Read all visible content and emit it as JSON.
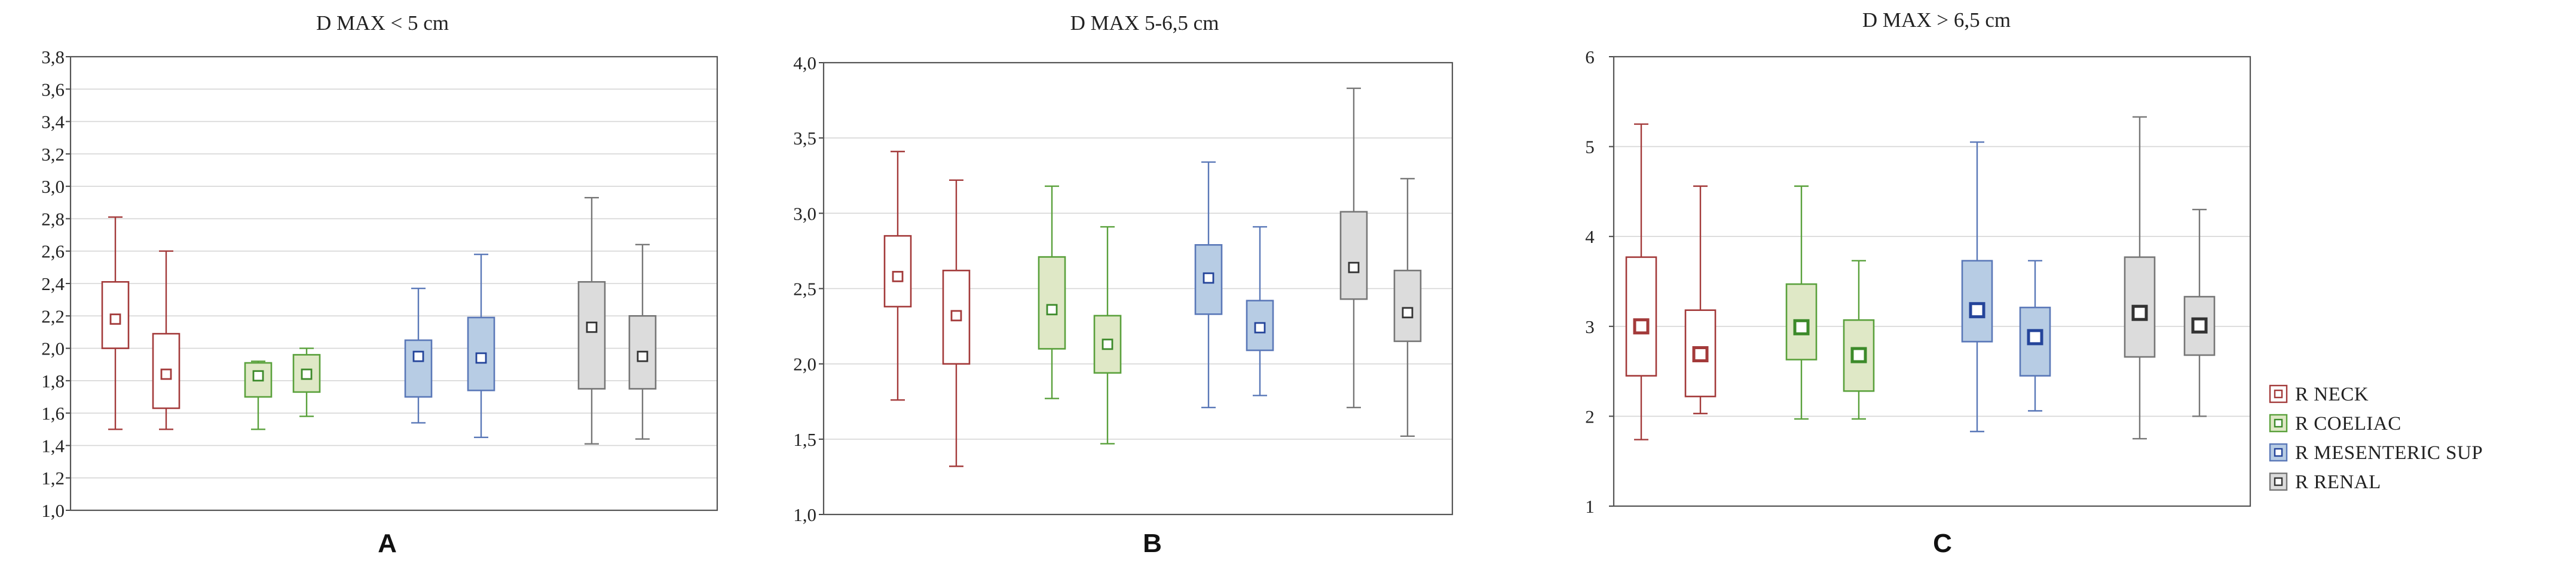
{
  "legend": [
    {
      "label": "R NECK",
      "stroke": "#a33a3a",
      "fill": "#ffffff",
      "marker": "#a33a3a"
    },
    {
      "label": "R COELIAC",
      "stroke": "#5aa13c",
      "fill": "#dfe8c6",
      "marker": "#3c8a2a"
    },
    {
      "label": "R MESENTERIC SUP",
      "stroke": "#5a78b8",
      "fill": "#b7cce4",
      "marker": "#24449a"
    },
    {
      "label": "R RENAL",
      "stroke": "#777777",
      "fill": "#dcdcdc",
      "marker": "#333333"
    }
  ],
  "chart_data": [
    {
      "type": "box",
      "title": "D MAX < 5 cm",
      "panel_label": "A",
      "ylim": [
        1.0,
        3.8
      ],
      "yticks": [
        "1,0",
        "1,2",
        "1,4",
        "1,6",
        "1,8",
        "2,0",
        "2,2",
        "2,4",
        "2,6",
        "2,8",
        "3,0",
        "3,2",
        "3,4",
        "3,6",
        "3,8"
      ],
      "boxes": [
        {
          "series": "R NECK",
          "min": 1.5,
          "q1": 2.0,
          "median": 2.18,
          "q3": 2.41,
          "max": 2.81
        },
        {
          "series": "R NECK",
          "min": 1.5,
          "q1": 1.63,
          "median": 1.84,
          "q3": 2.09,
          "max": 2.6
        },
        {
          "series": "R COELIAC",
          "min": 1.5,
          "q1": 1.7,
          "median": 1.83,
          "q3": 1.91,
          "max": 1.92
        },
        {
          "series": "R COELIAC",
          "min": 1.58,
          "q1": 1.73,
          "median": 1.84,
          "q3": 1.96,
          "max": 2.0
        },
        {
          "series": "R MESENTERIC SUP",
          "min": 1.54,
          "q1": 1.7,
          "median": 1.95,
          "q3": 2.05,
          "max": 2.37
        },
        {
          "series": "R MESENTERIC SUP",
          "min": 1.45,
          "q1": 1.74,
          "median": 1.94,
          "q3": 2.19,
          "max": 2.58
        },
        {
          "series": "R RENAL",
          "min": 1.41,
          "q1": 1.75,
          "median": 2.13,
          "q3": 2.41,
          "max": 2.93
        },
        {
          "series": "R RENAL",
          "min": 1.44,
          "q1": 1.75,
          "median": 1.95,
          "q3": 2.2,
          "max": 2.64
        }
      ]
    },
    {
      "type": "box",
      "title": "D MAX 5-6,5 cm",
      "panel_label": "B",
      "ylim": [
        1.0,
        4.0
      ],
      "yticks": [
        "1,0",
        "1,5",
        "2,0",
        "2,5",
        "3,0",
        "3,5",
        "4,0"
      ],
      "boxes": [
        {
          "series": "R NECK",
          "min": 1.76,
          "q1": 2.38,
          "median": 2.58,
          "q3": 2.85,
          "max": 3.41
        },
        {
          "series": "R NECK",
          "min": 1.32,
          "q1": 2.0,
          "median": 2.32,
          "q3": 2.62,
          "max": 3.22
        },
        {
          "series": "R COELIAC",
          "min": 1.77,
          "q1": 2.1,
          "median": 2.36,
          "q3": 2.71,
          "max": 3.18
        },
        {
          "series": "R COELIAC",
          "min": 1.47,
          "q1": 1.94,
          "median": 2.13,
          "q3": 2.32,
          "max": 2.91
        },
        {
          "series": "R MESENTERIC SUP",
          "min": 1.71,
          "q1": 2.33,
          "median": 2.57,
          "q3": 2.79,
          "max": 3.34
        },
        {
          "series": "R MESENTERIC SUP",
          "min": 1.79,
          "q1": 2.09,
          "median": 2.24,
          "q3": 2.42,
          "max": 2.91
        },
        {
          "series": "R RENAL",
          "min": 1.71,
          "q1": 2.43,
          "median": 2.64,
          "q3": 3.01,
          "max": 3.83
        },
        {
          "series": "R RENAL",
          "min": 1.52,
          "q1": 2.15,
          "median": 2.34,
          "q3": 2.62,
          "max": 3.23
        }
      ]
    },
    {
      "type": "box",
      "title": "D MAX > 6,5 cm",
      "panel_label": "C",
      "ylim": [
        1,
        6
      ],
      "yticks": [
        "1",
        "2",
        "3",
        "4",
        "5",
        "6"
      ],
      "boxes": [
        {
          "series": "R NECK",
          "min": 1.74,
          "q1": 2.45,
          "median": 3.0,
          "q3": 3.77,
          "max": 5.25
        },
        {
          "series": "R NECK",
          "min": 2.03,
          "q1": 2.22,
          "median": 2.69,
          "q3": 3.18,
          "max": 4.56
        },
        {
          "series": "R COELIAC",
          "min": 1.97,
          "q1": 2.63,
          "median": 2.99,
          "q3": 3.47,
          "max": 4.56
        },
        {
          "series": "R COELIAC",
          "min": 1.97,
          "q1": 2.28,
          "median": 2.68,
          "q3": 3.07,
          "max": 3.73
        },
        {
          "series": "R MESENTERIC SUP",
          "min": 1.83,
          "q1": 2.83,
          "median": 3.18,
          "q3": 3.73,
          "max": 5.05
        },
        {
          "series": "R MESENTERIC SUP",
          "min": 2.06,
          "q1": 2.45,
          "median": 2.88,
          "q3": 3.21,
          "max": 3.73
        },
        {
          "series": "R RENAL",
          "min": 1.75,
          "q1": 2.66,
          "median": 3.15,
          "q3": 3.77,
          "max": 5.33
        },
        {
          "series": "R RENAL",
          "min": 2.0,
          "q1": 2.68,
          "median": 3.01,
          "q3": 3.33,
          "max": 4.3
        }
      ]
    }
  ]
}
